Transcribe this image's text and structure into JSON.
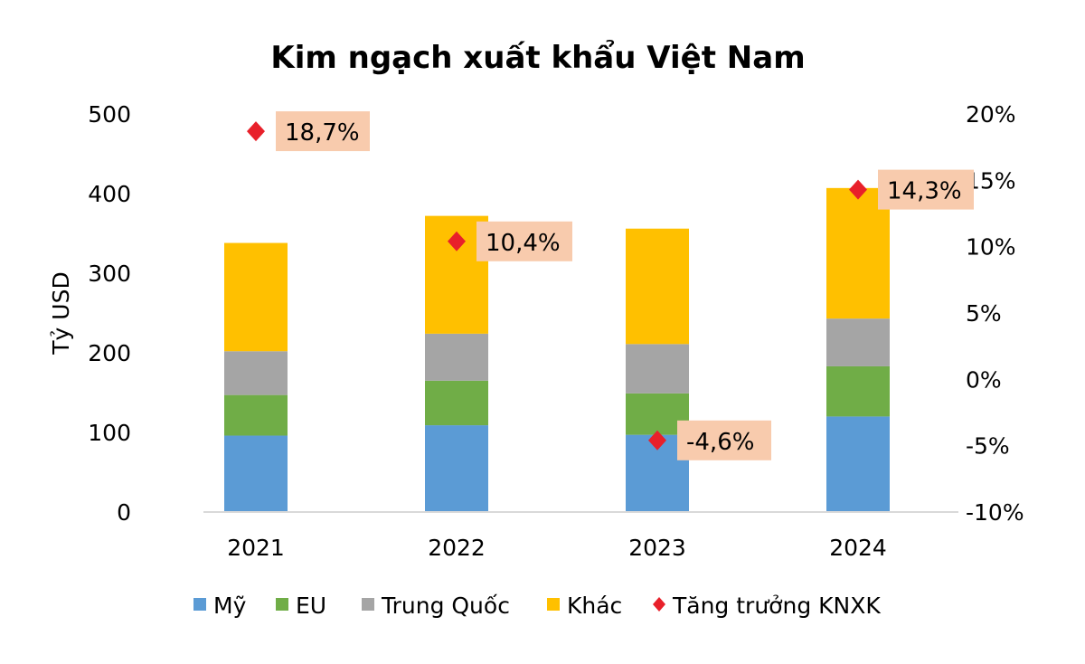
{
  "chart_data": {
    "type": "bar",
    "stacked": true,
    "title": "Kim ngạch xuất khẩu Việt Nam",
    "ylabel": "Tỷ USD",
    "ylim": [
      0,
      500
    ],
    "yticks": [
      "0",
      "100",
      "200",
      "300",
      "400",
      "500"
    ],
    "y2lim": [
      -10,
      20
    ],
    "y2ticks": [
      "-10%",
      "-5%",
      "0%",
      "5%",
      "10%",
      "15%",
      "20%"
    ],
    "categories": [
      "2021",
      "2022",
      "2023",
      "2024"
    ],
    "series": [
      {
        "name": "Mỹ",
        "color": "#5b9bd5",
        "values": [
          96,
          109,
          97,
          120
        ]
      },
      {
        "name": "EU",
        "color": "#70ad47",
        "values": [
          51,
          56,
          52,
          63
        ]
      },
      {
        "name": "Trung Quốc",
        "color": "#a5a5a5",
        "values": [
          55,
          59,
          62,
          60
        ]
      },
      {
        "name": "Khác",
        "color": "#ffc000",
        "values": [
          136,
          148,
          145,
          164
        ]
      }
    ],
    "line_series": {
      "name": "Tăng trưởng KNXK",
      "color": "#e8202a",
      "axis": "right",
      "marker": "diamond",
      "values": [
        18.7,
        10.4,
        -4.6,
        14.3
      ],
      "labels": [
        "18,7%",
        "10,4%",
        "-4,6%",
        "14,3%"
      ],
      "label_bg": "#f8cbad"
    },
    "grid": false,
    "legend": "bottom"
  }
}
